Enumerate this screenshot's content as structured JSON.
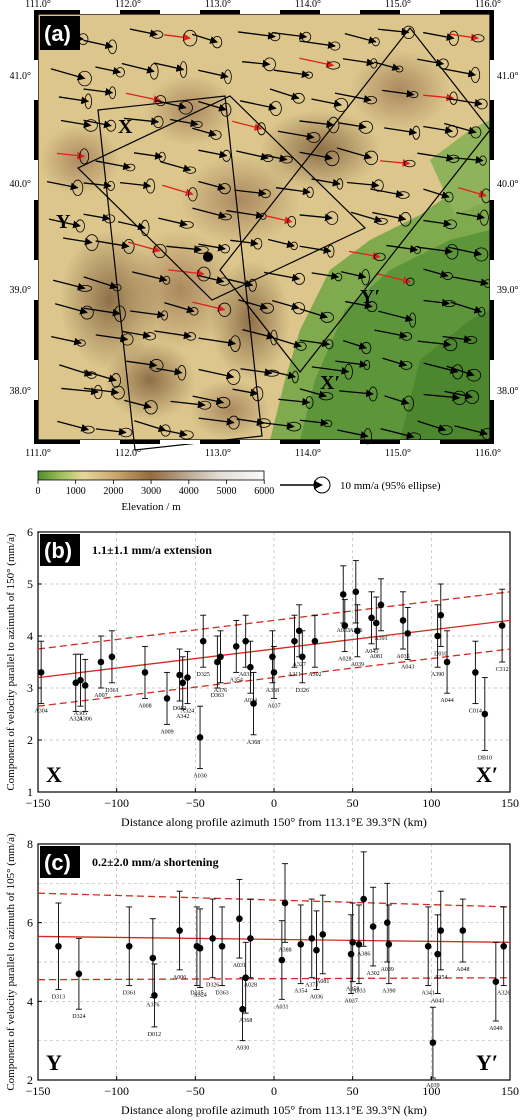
{
  "map_panel": {
    "panel_label": "(a)",
    "lon_ticks": [
      "111.0°",
      "112.0°",
      "113.0°",
      "114.0°",
      "115.0°",
      "116.0°"
    ],
    "lat_ticks": [
      "41.0°",
      "40.0°",
      "39.0°",
      "38.0°"
    ],
    "profile_labels": {
      "x": "X",
      "x_prime": "X′",
      "y": "Y",
      "y_prime": "Y′"
    },
    "colorbar": {
      "ticks": [
        "0",
        "1000",
        "2000",
        "3000",
        "4000",
        "5000",
        "6000"
      ],
      "label": "Elevation / m"
    },
    "legend_text": "10 mm/a (95% ellipse)",
    "colors": {
      "lowland": "#5f9a3e",
      "upland": "#d8c48a",
      "highland": "#a6835a",
      "red_vector": "#e0201a",
      "black_vector": "#000000"
    }
  },
  "chart_data": [
    {
      "type": "scatter",
      "panel_label": "(b)",
      "annotation": "1.1±1.1 mm/a extension",
      "ylabel": "Component of velocity parallel to azimuth of 150° (mm/a)",
      "xlabel": "Distance along profile azimuth 150° from 113.1°E 39.3°N (km)",
      "end_labels": [
        "X",
        "X′"
      ],
      "xlim": [
        -150,
        150
      ],
      "ylim": [
        1,
        6
      ],
      "xticks": [
        "−150",
        "−100",
        "−50",
        "0",
        "50",
        "100",
        "150"
      ],
      "yticks": [
        "1",
        "2",
        "3",
        "4",
        "5",
        "6"
      ],
      "grid": true,
      "fit": {
        "y_at_xmin": 3.2,
        "y_at_xmax": 4.3
      },
      "ci_upper": {
        "y_at_xmin": 3.75,
        "y_at_xmax": 4.85
      },
      "ci_lower": {
        "y_at_xmin": 2.65,
        "y_at_xmax": 3.75
      },
      "points": [
        {
          "x": -148,
          "y": 3.3,
          "err": 0.6,
          "label": "A304"
        },
        {
          "x": -126,
          "y": 3.1,
          "err": 0.55,
          "label": "A324"
        },
        {
          "x": -123,
          "y": 3.15,
          "err": 0.5,
          "label": "A305"
        },
        {
          "x": -120,
          "y": 3.05,
          "err": 0.5,
          "label": "A306"
        },
        {
          "x": -110,
          "y": 3.5,
          "err": 0.5,
          "label": "A007"
        },
        {
          "x": -103,
          "y": 3.6,
          "err": 0.5,
          "label": "D361"
        },
        {
          "x": -82,
          "y": 3.3,
          "err": 0.5,
          "label": "A008"
        },
        {
          "x": -68,
          "y": 2.8,
          "err": 0.5,
          "label": "A009"
        },
        {
          "x": -60,
          "y": 3.25,
          "err": 0.5,
          "label": "D012"
        },
        {
          "x": -58,
          "y": 3.1,
          "err": 0.5,
          "label": "A342"
        },
        {
          "x": -55,
          "y": 3.2,
          "err": 0.5,
          "label": "A324"
        },
        {
          "x": -47,
          "y": 2.05,
          "err": 0.6,
          "label": "A030"
        },
        {
          "x": -45,
          "y": 3.9,
          "err": 0.5,
          "label": "D325"
        },
        {
          "x": -36,
          "y": 3.5,
          "err": 0.5,
          "label": "D363"
        },
        {
          "x": -34,
          "y": 3.6,
          "err": 0.5,
          "label": "A376"
        },
        {
          "x": -24,
          "y": 3.8,
          "err": 0.5,
          "label": "A354"
        },
        {
          "x": -15,
          "y": 3.4,
          "err": 0.5,
          "label": "A034"
        },
        {
          "x": -18,
          "y": 3.9,
          "err": 0.5,
          "label": "A031"
        },
        {
          "x": -13,
          "y": 2.7,
          "err": 0.6,
          "label": "A368"
        },
        {
          "x": -1,
          "y": 3.6,
          "err": 0.5,
          "label": "A358"
        },
        {
          "x": 0,
          "y": 3.3,
          "err": 0.5,
          "label": "A037"
        },
        {
          "x": 13,
          "y": 3.9,
          "err": 0.5,
          "label": "A311"
        },
        {
          "x": 16,
          "y": 4.1,
          "err": 0.5,
          "label": "A327"
        },
        {
          "x": 18,
          "y": 3.6,
          "err": 0.5,
          "label": "D326"
        },
        {
          "x": 26,
          "y": 3.9,
          "err": 0.5,
          "label": "A302"
        },
        {
          "x": 44,
          "y": 4.8,
          "err": 0.55,
          "label": "A033"
        },
        {
          "x": 45,
          "y": 4.2,
          "err": 0.5,
          "label": "A028"
        },
        {
          "x": 52,
          "y": 4.85,
          "err": 0.6,
          "label": "A386"
        },
        {
          "x": 53,
          "y": 4.1,
          "err": 0.5,
          "label": "A039"
        },
        {
          "x": 62,
          "y": 4.35,
          "err": 0.5,
          "label": "A045"
        },
        {
          "x": 65,
          "y": 4.25,
          "err": 0.5,
          "label": "A081"
        },
        {
          "x": 68,
          "y": 4.6,
          "err": 0.5,
          "label": "A391"
        },
        {
          "x": 82,
          "y": 4.3,
          "err": 0.55,
          "label": "A035"
        },
        {
          "x": 85,
          "y": 4.05,
          "err": 0.5,
          "label": "A043"
        },
        {
          "x": 104,
          "y": 4.0,
          "err": 0.6,
          "label": "A390"
        },
        {
          "x": 106,
          "y": 4.4,
          "err": 0.6,
          "label": "D010"
        },
        {
          "x": 110,
          "y": 3.5,
          "err": 0.6,
          "label": "A044"
        },
        {
          "x": 128,
          "y": 3.3,
          "err": 0.6,
          "label": "C014"
        },
        {
          "x": 134,
          "y": 2.5,
          "err": 0.7,
          "label": "DB10"
        },
        {
          "x": 145,
          "y": 4.2,
          "err": 0.7,
          "label": "C312"
        }
      ]
    },
    {
      "type": "scatter",
      "panel_label": "(c)",
      "annotation": "0.2±2.0 mm/a shortening",
      "ylabel": "Component of velocity parallel to azimuth of 105° (mm/a)",
      "xlabel": "Distance along profile azimuth 105° from 113.1°E 39.3°N (km)",
      "end_labels": [
        "Y",
        "Y′"
      ],
      "xlim": [
        -150,
        150
      ],
      "ylim": [
        2,
        8
      ],
      "xticks": [
        "−150",
        "−100",
        "−50",
        "0",
        "50",
        "100",
        "150"
      ],
      "yticks": [
        "2",
        "4",
        "6",
        "8"
      ],
      "grid": true,
      "fit": {
        "y_at_xmin": 5.65,
        "y_at_xmax": 5.5
      },
      "ci_upper": {
        "y_at_xmin": 6.75,
        "y_at_xmax": 6.4
      },
      "ci_lower": {
        "y_at_xmin": 4.55,
        "y_at_xmax": 4.6
      },
      "points": [
        {
          "x": -137,
          "y": 5.4,
          "err": 1.1,
          "label": "D313"
        },
        {
          "x": -124,
          "y": 4.7,
          "err": 0.9,
          "label": "D324"
        },
        {
          "x": -92,
          "y": 5.4,
          "err": 1.0,
          "label": "D361"
        },
        {
          "x": -77,
          "y": 5.1,
          "err": 1.0,
          "label": "A376"
        },
        {
          "x": -76,
          "y": 4.15,
          "err": 0.8,
          "label": "D012"
        },
        {
          "x": -60,
          "y": 5.8,
          "err": 1.0,
          "label": "A006"
        },
        {
          "x": -49,
          "y": 5.4,
          "err": 1.0,
          "label": "D325"
        },
        {
          "x": -47,
          "y": 5.35,
          "err": 1.0,
          "label": "A324"
        },
        {
          "x": -39,
          "y": 5.6,
          "err": 1.0,
          "label": "D326"
        },
        {
          "x": -33,
          "y": 5.4,
          "err": 1.0,
          "label": "D363"
        },
        {
          "x": -22,
          "y": 6.1,
          "err": 1.0,
          "label": "A031"
        },
        {
          "x": -20,
          "y": 3.8,
          "err": 0.8,
          "label": "A030"
        },
        {
          "x": -18,
          "y": 4.6,
          "err": 0.9,
          "label": "A368"
        },
        {
          "x": -15,
          "y": 5.6,
          "err": 1.0,
          "label": "A028"
        },
        {
          "x": 5,
          "y": 5.05,
          "err": 1.0,
          "label": "A031"
        },
        {
          "x": 7,
          "y": 6.5,
          "err": 1.0,
          "label": "A388"
        },
        {
          "x": 17,
          "y": 5.45,
          "err": 1.0,
          "label": "A354"
        },
        {
          "x": 24,
          "y": 5.6,
          "err": 1.0,
          "label": "A373"
        },
        {
          "x": 27,
          "y": 5.3,
          "err": 1.0,
          "label": "A036"
        },
        {
          "x": 31,
          "y": 5.7,
          "err": 1.0,
          "label": "A081"
        },
        {
          "x": 49,
          "y": 5.2,
          "err": 1.0,
          "label": "A037"
        },
        {
          "x": 50,
          "y": 5.5,
          "err": 1.0,
          "label": "A358"
        },
        {
          "x": 54,
          "y": 5.45,
          "err": 1.0,
          "label": "A033"
        },
        {
          "x": 57,
          "y": 6.6,
          "err": 1.2,
          "label": "A386"
        },
        {
          "x": 63,
          "y": 5.9,
          "err": 1.0,
          "label": "A302"
        },
        {
          "x": 73,
          "y": 5.45,
          "err": 1.0,
          "label": "A390"
        },
        {
          "x": 72,
          "y": 6.0,
          "err": 1.0,
          "label": "A039"
        },
        {
          "x": 98,
          "y": 5.4,
          "err": 1.0,
          "label": "A341"
        },
        {
          "x": 101,
          "y": 2.95,
          "err": 0.9,
          "label": "A039"
        },
        {
          "x": 104,
          "y": 5.2,
          "err": 1.0,
          "label": "A043"
        },
        {
          "x": 106,
          "y": 5.8,
          "err": 1.0,
          "label": "A354"
        },
        {
          "x": 120,
          "y": 5.8,
          "err": 0.8,
          "label": "A048"
        },
        {
          "x": 141,
          "y": 4.5,
          "err": 1.0,
          "label": "A049"
        },
        {
          "x": 146,
          "y": 5.4,
          "err": 1.0,
          "label": "A326"
        }
      ]
    }
  ]
}
